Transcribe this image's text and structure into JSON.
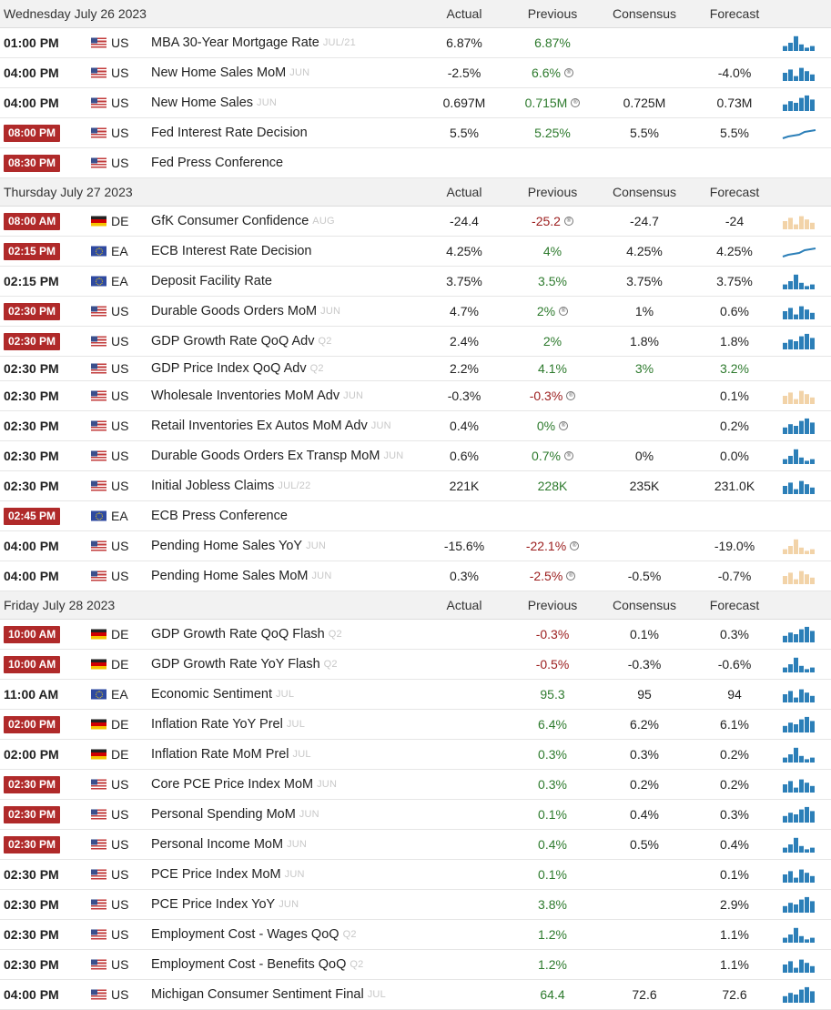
{
  "headers": {
    "actual": "Actual",
    "previous": "Previous",
    "consensus": "Consensus",
    "forecast": "Forecast"
  },
  "days": [
    {
      "date": "Wednesday July 26 2023",
      "events": [
        {
          "time": "01:00 PM",
          "badge": false,
          "country": "US",
          "name": "MBA 30-Year Mortgage Rate",
          "ref": "JUL/21",
          "actual": "6.87%",
          "previous": "6.87%",
          "prev_color": "green",
          "revised": false,
          "consensus": "",
          "forecast": "",
          "spark": "bars"
        },
        {
          "time": "04:00 PM",
          "badge": false,
          "country": "US",
          "name": "New Home Sales MoM",
          "ref": "JUN",
          "actual": "-2.5%",
          "previous": "6.6%",
          "prev_color": "green",
          "revised": true,
          "consensus": "",
          "forecast": "-4.0%",
          "spark": "bars"
        },
        {
          "time": "04:00 PM",
          "badge": false,
          "country": "US",
          "name": "New Home Sales",
          "ref": "JUN",
          "actual": "0.697M",
          "previous": "0.715M",
          "prev_color": "green",
          "revised": true,
          "consensus": "0.725M",
          "forecast": "0.73M",
          "spark": "bars"
        },
        {
          "time": "08:00 PM",
          "badge": true,
          "country": "US",
          "name": "Fed Interest Rate Decision",
          "ref": "",
          "actual": "5.5%",
          "previous": "5.25%",
          "prev_color": "green",
          "revised": false,
          "consensus": "5.5%",
          "forecast": "5.5%",
          "spark": "line"
        },
        {
          "time": "08:30 PM",
          "badge": true,
          "country": "US",
          "name": "Fed Press Conference",
          "ref": "",
          "actual": "",
          "previous": "",
          "prev_color": "",
          "revised": false,
          "consensus": "",
          "forecast": "",
          "spark": "none"
        }
      ]
    },
    {
      "date": "Thursday July 27 2023",
      "events": [
        {
          "time": "08:00 AM",
          "badge": true,
          "country": "DE",
          "name": "GfK Consumer Confidence",
          "ref": "AUG",
          "actual": "-24.4",
          "previous": "-25.2",
          "prev_color": "red",
          "revised": true,
          "consensus": "-24.7",
          "forecast": "-24",
          "spark": "bars-faded"
        },
        {
          "time": "02:15 PM",
          "badge": true,
          "country": "EA",
          "name": "ECB Interest Rate Decision",
          "ref": "",
          "actual": "4.25%",
          "previous": "4%",
          "prev_color": "green",
          "revised": false,
          "consensus": "4.25%",
          "forecast": "4.25%",
          "spark": "line"
        },
        {
          "time": "02:15 PM",
          "badge": false,
          "country": "EA",
          "name": "Deposit Facility Rate",
          "ref": "",
          "actual": "3.75%",
          "previous": "3.5%",
          "prev_color": "green",
          "revised": false,
          "consensus": "3.75%",
          "forecast": "3.75%",
          "spark": "bars"
        },
        {
          "time": "02:30 PM",
          "badge": true,
          "country": "US",
          "name": "Durable Goods Orders MoM",
          "ref": "JUN",
          "actual": "4.7%",
          "previous": "2%",
          "prev_color": "green",
          "revised": true,
          "consensus": "1%",
          "forecast": "0.6%",
          "spark": "bars"
        },
        {
          "time": "02:30 PM",
          "badge": true,
          "country": "US",
          "name": "GDP Growth Rate QoQ Adv",
          "ref": "Q2",
          "actual": "2.4%",
          "previous": "2%",
          "prev_color": "green",
          "revised": false,
          "consensus": "1.8%",
          "forecast": "1.8%",
          "spark": "bars"
        },
        {
          "time": "02:30 PM",
          "badge": false,
          "country": "US",
          "name": "GDP Price Index QoQ Adv",
          "ref": "Q2",
          "actual": "2.2%",
          "previous": "4.1%",
          "prev_color": "green",
          "revised": false,
          "consensus": "3%",
          "forecast": "3.2%",
          "cons_color": "green",
          "fore_color": "green",
          "spark": "none",
          "short": true
        },
        {
          "time": "02:30 PM",
          "badge": false,
          "country": "US",
          "name": "Wholesale Inventories MoM Adv",
          "ref": "JUN",
          "actual": "-0.3%",
          "previous": "-0.3%",
          "prev_color": "red",
          "revised": true,
          "consensus": "",
          "forecast": "0.1%",
          "spark": "bars-faded"
        },
        {
          "time": "02:30 PM",
          "badge": false,
          "country": "US",
          "name": "Retail Inventories Ex Autos MoM Adv",
          "ref": "JUN",
          "actual": "0.4%",
          "previous": "0%",
          "prev_color": "green",
          "revised": true,
          "consensus": "",
          "forecast": "0.2%",
          "spark": "bars"
        },
        {
          "time": "02:30 PM",
          "badge": false,
          "country": "US",
          "name": "Durable Goods Orders Ex Transp MoM",
          "ref": "JUN",
          "actual": "0.6%",
          "previous": "0.7%",
          "prev_color": "green",
          "revised": true,
          "consensus": "0%",
          "forecast": "0.0%",
          "spark": "bars"
        },
        {
          "time": "02:30 PM",
          "badge": false,
          "country": "US",
          "name": "Initial Jobless Claims",
          "ref": "JUL/22",
          "actual": "221K",
          "previous": "228K",
          "prev_color": "green",
          "revised": false,
          "consensus": "235K",
          "forecast": "231.0K",
          "spark": "bars"
        },
        {
          "time": "02:45 PM",
          "badge": true,
          "country": "EA",
          "name": "ECB Press Conference",
          "ref": "",
          "actual": "",
          "previous": "",
          "prev_color": "",
          "revised": false,
          "consensus": "",
          "forecast": "",
          "spark": "none"
        },
        {
          "time": "04:00 PM",
          "badge": false,
          "country": "US",
          "name": "Pending Home Sales YoY",
          "ref": "JUN",
          "actual": "-15.6%",
          "previous": "-22.1%",
          "prev_color": "red",
          "revised": true,
          "consensus": "",
          "forecast": "-19.0%",
          "spark": "bars-faded"
        },
        {
          "time": "04:00 PM",
          "badge": false,
          "country": "US",
          "name": "Pending Home Sales MoM",
          "ref": "JUN",
          "actual": "0.3%",
          "previous": "-2.5%",
          "prev_color": "red",
          "revised": true,
          "consensus": "-0.5%",
          "forecast": "-0.7%",
          "spark": "bars-faded"
        }
      ]
    },
    {
      "date": "Friday July 28 2023",
      "events": [
        {
          "time": "10:00 AM",
          "badge": true,
          "country": "DE",
          "name": "GDP Growth Rate QoQ Flash",
          "ref": "Q2",
          "actual": "",
          "previous": "-0.3%",
          "prev_color": "red",
          "revised": false,
          "consensus": "0.1%",
          "forecast": "0.3%",
          "spark": "bars"
        },
        {
          "time": "10:00 AM",
          "badge": true,
          "country": "DE",
          "name": "GDP Growth Rate YoY Flash",
          "ref": "Q2",
          "actual": "",
          "previous": "-0.5%",
          "prev_color": "red",
          "revised": false,
          "consensus": "-0.3%",
          "forecast": "-0.6%",
          "spark": "bars"
        },
        {
          "time": "11:00 AM",
          "badge": false,
          "country": "EA",
          "name": "Economic Sentiment",
          "ref": "JUL",
          "actual": "",
          "previous": "95.3",
          "prev_color": "green",
          "revised": false,
          "consensus": "95",
          "forecast": "94",
          "spark": "bars"
        },
        {
          "time": "02:00 PM",
          "badge": true,
          "country": "DE",
          "name": "Inflation Rate YoY Prel",
          "ref": "JUL",
          "actual": "",
          "previous": "6.4%",
          "prev_color": "green",
          "revised": false,
          "consensus": "6.2%",
          "forecast": "6.1%",
          "spark": "bars"
        },
        {
          "time": "02:00 PM",
          "badge": false,
          "country": "DE",
          "name": "Inflation Rate MoM Prel",
          "ref": "JUL",
          "actual": "",
          "previous": "0.3%",
          "prev_color": "green",
          "revised": false,
          "consensus": "0.3%",
          "forecast": "0.2%",
          "spark": "bars"
        },
        {
          "time": "02:30 PM",
          "badge": true,
          "country": "US",
          "name": "Core PCE Price Index MoM",
          "ref": "JUN",
          "actual": "",
          "previous": "0.3%",
          "prev_color": "green",
          "revised": false,
          "consensus": "0.2%",
          "forecast": "0.2%",
          "spark": "bars"
        },
        {
          "time": "02:30 PM",
          "badge": true,
          "country": "US",
          "name": "Personal Spending MoM",
          "ref": "JUN",
          "actual": "",
          "previous": "0.1%",
          "prev_color": "green",
          "revised": false,
          "consensus": "0.4%",
          "forecast": "0.3%",
          "spark": "bars"
        },
        {
          "time": "02:30 PM",
          "badge": true,
          "country": "US",
          "name": "Personal Income MoM",
          "ref": "JUN",
          "actual": "",
          "previous": "0.4%",
          "prev_color": "green",
          "revised": false,
          "consensus": "0.5%",
          "forecast": "0.4%",
          "spark": "bars"
        },
        {
          "time": "02:30 PM",
          "badge": false,
          "country": "US",
          "name": "PCE Price Index MoM",
          "ref": "JUN",
          "actual": "",
          "previous": "0.1%",
          "prev_color": "green",
          "revised": false,
          "consensus": "",
          "forecast": "0.1%",
          "spark": "bars"
        },
        {
          "time": "02:30 PM",
          "badge": false,
          "country": "US",
          "name": "PCE Price Index YoY",
          "ref": "JUN",
          "actual": "",
          "previous": "3.8%",
          "prev_color": "green",
          "revised": false,
          "consensus": "",
          "forecast": "2.9%",
          "spark": "bars"
        },
        {
          "time": "02:30 PM",
          "badge": false,
          "country": "US",
          "name": "Employment Cost - Wages QoQ",
          "ref": "Q2",
          "actual": "",
          "previous": "1.2%",
          "prev_color": "green",
          "revised": false,
          "consensus": "",
          "forecast": "1.1%",
          "spark": "bars"
        },
        {
          "time": "02:30 PM",
          "badge": false,
          "country": "US",
          "name": "Employment Cost - Benefits QoQ",
          "ref": "Q2",
          "actual": "",
          "previous": "1.2%",
          "prev_color": "green",
          "revised": false,
          "consensus": "",
          "forecast": "1.1%",
          "spark": "bars"
        },
        {
          "time": "04:00 PM",
          "badge": false,
          "country": "US",
          "name": "Michigan Consumer Sentiment Final",
          "ref": "JUL",
          "actual": "",
          "previous": "64.4",
          "prev_color": "green",
          "revised": false,
          "consensus": "72.6",
          "forecast": "72.6",
          "spark": "bars"
        }
      ]
    }
  ],
  "colors": {
    "badge": "#b02a2a",
    "positive": "#2d7a2d",
    "negative": "#9b1c1c",
    "spark": "#2c7fb8",
    "spark_faded": "#f2d3a8"
  }
}
